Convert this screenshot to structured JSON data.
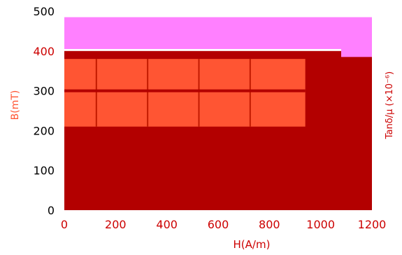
{
  "chart_data": {
    "type": "area",
    "title": "",
    "xlabel": "H(A/m)",
    "ylabel": "B(mT)",
    "y2label": "Tanδ/μ (×10⁻⁶)",
    "xlim": [
      0,
      1200
    ],
    "ylim": [
      0,
      500
    ],
    "xticks": [
      "0",
      "200",
      "400",
      "600",
      "800",
      "1000",
      "1200"
    ],
    "yticks": [
      "0",
      "100",
      "200",
      "300",
      "400",
      "500"
    ],
    "x_ticks_values": [
      0,
      200,
      400,
      600,
      800,
      1000,
      1200
    ],
    "y_ticks_values": [
      0,
      100,
      200,
      300,
      400,
      500
    ],
    "regions": [
      {
        "name": "",
        "x": [
          0,
          1200
        ],
        "y": [
          0,
          400
        ],
        "color": "#B30000"
      },
      {
        "name": "",
        "x": [
          0,
          940
        ],
        "y": [
          210,
          380
        ],
        "color": "#FF5533"
      },
      {
        "name": "",
        "x": [
          0,
          1080
        ],
        "y": [
          405,
          485
        ],
        "color": "#FF80FF"
      },
      {
        "name": "",
        "x": [
          1080,
          1200
        ],
        "y": [
          385,
          485
        ],
        "color": "#FF80FF"
      }
    ],
    "grid": false,
    "legend": "none",
    "colors": {
      "axis_text": "#000000",
      "tick_label_red": "#CC0000",
      "ylabel_left": "#FF5533",
      "ylabel_right": "#CC0000",
      "xlabel": "#CC0000"
    }
  }
}
